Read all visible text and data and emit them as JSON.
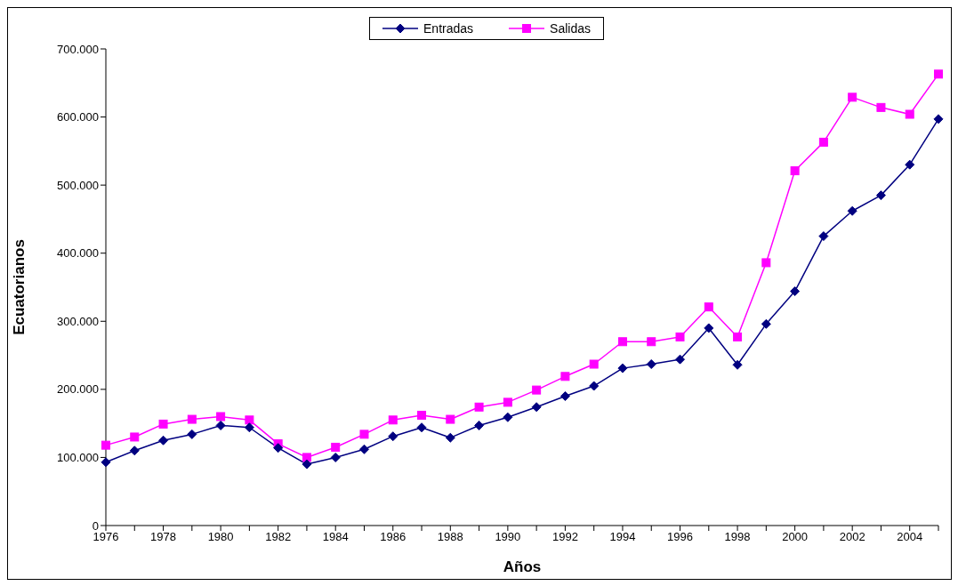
{
  "chart_data": {
    "type": "line",
    "xlabel": "Años",
    "ylabel": "Ecuatorianos",
    "categories": [
      "1976",
      null,
      "1978",
      null,
      "1980",
      null,
      "1982",
      null,
      "1984",
      null,
      "1986",
      null,
      "1988",
      null,
      "1990",
      null,
      "1992",
      null,
      "1994",
      null,
      "1996",
      null,
      "1998",
      null,
      "2000",
      null,
      "2002",
      null,
      "2004",
      null
    ],
    "series": [
      {
        "name": "Entradas",
        "color": "#000080",
        "marker": "diamond",
        "values": [
          93000,
          110000,
          125000,
          134000,
          147000,
          144000,
          114000,
          90000,
          100000,
          112000,
          131000,
          144000,
          129000,
          147000,
          159000,
          174000,
          190000,
          205000,
          231000,
          237000,
          244000,
          290000,
          236000,
          296000,
          344000,
          425000,
          462000,
          485000,
          530000,
          597000
        ]
      },
      {
        "name": "Salidas",
        "color": "#ff00ff",
        "marker": "square",
        "values": [
          118000,
          130000,
          149000,
          156000,
          160000,
          155000,
          120000,
          100000,
          115000,
          134000,
          155000,
          162000,
          156000,
          174000,
          181000,
          199000,
          219000,
          237000,
          270000,
          270000,
          277000,
          321000,
          277000,
          386000,
          521000,
          563000,
          629000,
          614000,
          604000,
          663000
        ]
      }
    ],
    "ylim": [
      0,
      700000
    ],
    "yticks": [
      0,
      {
        "value": 100000,
        "label": "100.000"
      },
      {
        "value": 200000,
        "label": "200.000"
      },
      {
        "value": 300000,
        "label": "300.000"
      },
      {
        "value": 400000,
        "label": "400.000"
      },
      {
        "value": 500000,
        "label": "500.000"
      },
      {
        "value": 600000,
        "label": "600.000"
      },
      {
        "value": 700000,
        "label": "700.000"
      }
    ],
    "grid": false,
    "legend": "top",
    "line_style": "solid"
  }
}
